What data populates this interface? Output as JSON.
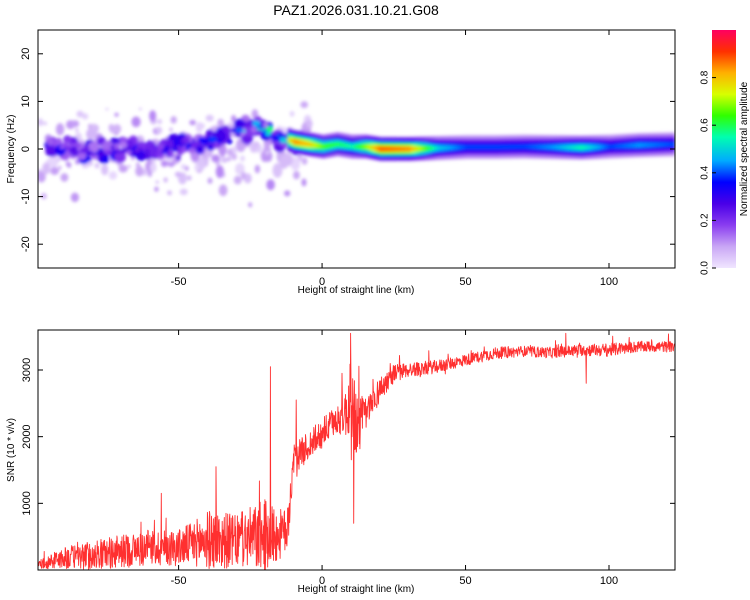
{
  "figure_title": "PAZ1.2026.031.10.21.G08",
  "chart_data": [
    {
      "type": "heatmap",
      "title": "PAZ1.2026.031.10.21.G08",
      "xlabel": "Height of straight line (km)",
      "ylabel": "Frequency (Hz)",
      "xlim": [
        -99,
        123
      ],
      "ylim": [
        -25,
        25
      ],
      "xticks": [
        -50,
        0,
        50,
        100
      ],
      "yticks": [
        -20,
        -10,
        0,
        10,
        20
      ],
      "colorbar": {
        "label": "Normalized spectral amplitude",
        "range": [
          0,
          1
        ],
        "ticks": [
          "0.0",
          "0.2",
          "0.4",
          "0.6",
          "0.8"
        ],
        "colormap": [
          "#f0e6ff",
          "#c9a6f5",
          "#8a3df0",
          "#4a00e8",
          "#0000ff",
          "#00aaff",
          "#00ffb0",
          "#30ff00",
          "#d8ff00",
          "#ffb000",
          "#ff3000",
          "#ff0060"
        ]
      },
      "ridge": {
        "x": [
          -99,
          -90,
          -80,
          -70,
          -60,
          -50,
          -40,
          -30,
          -25,
          -20,
          -15,
          -10,
          -5,
          0,
          5,
          10,
          15,
          20,
          30,
          40,
          50,
          60,
          70,
          80,
          90,
          100,
          110,
          123
        ],
        "frequency_hz": [
          1.5,
          0.5,
          -1.0,
          0.5,
          -0.5,
          0.5,
          1.5,
          3.5,
          4.5,
          4.0,
          2.5,
          1.5,
          1.0,
          0.5,
          1.0,
          0.5,
          0.5,
          0.0,
          0.0,
          0.2,
          0.4,
          0.4,
          0.5,
          0.4,
          0.3,
          0.5,
          0.8,
          1.0
        ],
        "amplitude": [
          0.15,
          0.2,
          0.25,
          0.25,
          0.25,
          0.3,
          0.35,
          0.4,
          0.45,
          0.45,
          0.6,
          0.85,
          0.8,
          0.65,
          0.6,
          0.55,
          0.7,
          0.9,
          0.85,
          0.5,
          0.4,
          0.4,
          0.4,
          0.45,
          0.55,
          0.4,
          0.45,
          0.4
        ]
      }
    },
    {
      "type": "line",
      "xlabel": "Height of straight line (km)",
      "ylabel": "SNR (10 * v/v)",
      "xlim": [
        -99,
        123
      ],
      "ylim": [
        0,
        3600
      ],
      "xticks": [
        -50,
        0,
        50,
        100
      ],
      "yticks": [
        1000,
        2000,
        3000
      ],
      "color": "#ff3030",
      "series": [
        {
          "name": "SNR",
          "x": [
            -99,
            -90,
            -80,
            -70,
            -60,
            -50,
            -45,
            -40,
            -35,
            -30,
            -25,
            -20,
            -15,
            -12,
            -10,
            -5,
            0,
            5,
            8,
            10,
            12,
            15,
            20,
            25,
            30,
            40,
            50,
            60,
            70,
            80,
            90,
            100,
            110,
            123
          ],
          "baseline": [
            80,
            180,
            220,
            280,
            330,
            340,
            400,
            450,
            450,
            430,
            480,
            500,
            520,
            600,
            1650,
            1850,
            2050,
            2250,
            2350,
            2500,
            2200,
            2300,
            2700,
            2950,
            3000,
            3050,
            3150,
            3250,
            3280,
            3260,
            3300,
            3300,
            3350,
            3350
          ],
          "noise": [
            100,
            300,
            400,
            450,
            500,
            500,
            600,
            800,
            800,
            700,
            850,
            1000,
            700,
            600,
            400,
            400,
            400,
            400,
            600,
            1200,
            1000,
            500,
            350,
            250,
            200,
            180,
            160,
            160,
            150,
            150,
            160,
            180,
            150,
            150
          ],
          "peaks": [
            {
              "x": -56,
              "y": 1150
            },
            {
              "x": -37,
              "y": 1550
            },
            {
              "x": -18,
              "y": 3050
            },
            {
              "x": -9,
              "y": 2550
            },
            {
              "x": 7,
              "y": 2950
            },
            {
              "x": 10,
              "y": 3550
            },
            {
              "x": 11,
              "y": 700
            },
            {
              "x": 85,
              "y": 3550
            },
            {
              "x": 92,
              "y": 2800
            }
          ]
        }
      ]
    }
  ]
}
